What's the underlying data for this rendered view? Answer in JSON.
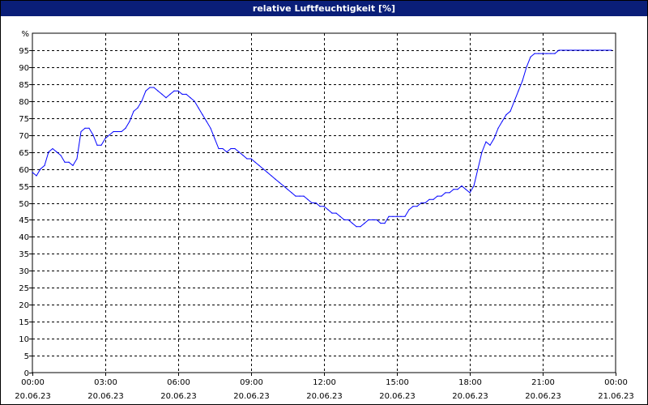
{
  "title": "relative Luftfeuchtigkeit [%]",
  "colors": {
    "titlebar": "#0a1e78",
    "line": "#0000ff",
    "grid": "#000000"
  },
  "chart_data": {
    "type": "line",
    "title": "relative Luftfeuchtigkeit [%]",
    "ylabel": "%",
    "ylim": [
      0,
      95
    ],
    "yticks": [
      0,
      5,
      10,
      15,
      20,
      25,
      30,
      35,
      40,
      45,
      50,
      55,
      60,
      65,
      70,
      75,
      80,
      85,
      90,
      95
    ],
    "xlim": [
      "20.06.23 00:00",
      "21.06.23 00:00"
    ],
    "xticks": [
      {
        "time": "00:00",
        "date": "20.06.23"
      },
      {
        "time": "03:00",
        "date": "20.06.23"
      },
      {
        "time": "06:00",
        "date": "20.06.23"
      },
      {
        "time": "09:00",
        "date": "20.06.23"
      },
      {
        "time": "12:00",
        "date": "20.06.23"
      },
      {
        "time": "15:00",
        "date": "20.06.23"
      },
      {
        "time": "18:00",
        "date": "20.06.23"
      },
      {
        "time": "21:00",
        "date": "20.06.23"
      },
      {
        "time": "00:00",
        "date": "21.06.23"
      }
    ],
    "grid": true,
    "series": [
      {
        "x": [
          "00:00",
          "00:10",
          "00:20",
          "00:30",
          "00:40",
          "00:50",
          "01:00",
          "01:10",
          "01:20",
          "01:30",
          "01:40",
          "01:50",
          "02:00",
          "02:10",
          "02:20",
          "02:30",
          "02:40",
          "02:50",
          "03:00",
          "03:10",
          "03:20",
          "03:30",
          "03:40",
          "03:50",
          "04:00",
          "04:10",
          "04:20",
          "04:30",
          "04:40",
          "04:50",
          "05:00",
          "05:10",
          "05:20",
          "05:30",
          "05:40",
          "05:50",
          "06:00",
          "06:10",
          "06:20",
          "06:30",
          "06:40",
          "06:50",
          "07:00",
          "07:10",
          "07:20",
          "07:30",
          "07:40",
          "07:50",
          "08:00",
          "08:10",
          "08:20",
          "08:30",
          "08:40",
          "08:50",
          "09:00",
          "09:10",
          "09:20",
          "09:30",
          "09:40",
          "09:50",
          "10:00",
          "10:10",
          "10:20",
          "10:30",
          "10:40",
          "10:50",
          "11:00",
          "11:10",
          "11:20",
          "11:30",
          "11:40",
          "11:50",
          "12:00",
          "12:10",
          "12:20",
          "12:30",
          "12:40",
          "12:50",
          "13:00",
          "13:10",
          "13:20",
          "13:30",
          "13:40",
          "13:50",
          "14:00",
          "14:10",
          "14:20",
          "14:30",
          "14:40",
          "14:50",
          "15:00",
          "15:10",
          "15:20",
          "15:30",
          "15:40",
          "15:50",
          "16:00",
          "16:10",
          "16:20",
          "16:30",
          "16:40",
          "16:50",
          "17:00",
          "17:10",
          "17:20",
          "17:30",
          "17:40",
          "17:50",
          "18:00",
          "18:10",
          "18:20",
          "18:30",
          "18:40",
          "18:50",
          "19:00",
          "19:10",
          "19:20",
          "19:30",
          "19:40",
          "19:50",
          "20:00",
          "20:10",
          "20:20",
          "20:30",
          "20:40",
          "20:50",
          "21:00",
          "21:10",
          "21:20",
          "21:30",
          "21:40",
          "21:50",
          "22:00",
          "22:10",
          "22:20",
          "22:30",
          "22:40",
          "22:50",
          "23:00",
          "23:10",
          "23:20",
          "23:30",
          "23:40",
          "23:50"
        ],
        "values": [
          59,
          58,
          60,
          61,
          65,
          66,
          65,
          64,
          62,
          62,
          61,
          63,
          71,
          72,
          72,
          70,
          67,
          67,
          69,
          70,
          71,
          71,
          71,
          72,
          74,
          77,
          78,
          80,
          83,
          84,
          84,
          83,
          82,
          81,
          82,
          83,
          83,
          82,
          82,
          81,
          80,
          78,
          76,
          74,
          72,
          69,
          66,
          66,
          65,
          66,
          66,
          65,
          64,
          63,
          63,
          62,
          61,
          60,
          59,
          58,
          57,
          56,
          55,
          54,
          53,
          52,
          52,
          52,
          51,
          50,
          50,
          49,
          49,
          48,
          47,
          47,
          46,
          45,
          45,
          44,
          43,
          43,
          44,
          45,
          45,
          45,
          44,
          44,
          46,
          46,
          46,
          46,
          46,
          48,
          49,
          49,
          50,
          50,
          51,
          51,
          52,
          52,
          53,
          53,
          54,
          54,
          55,
          54,
          53,
          55,
          60,
          65,
          68,
          67,
          69,
          72,
          74,
          76,
          77,
          80,
          83,
          86,
          90,
          93,
          94,
          94,
          94,
          94,
          94,
          94,
          95,
          95,
          95,
          95,
          95,
          95,
          95,
          95,
          95,
          95,
          95,
          95,
          95,
          95
        ]
      }
    ]
  }
}
